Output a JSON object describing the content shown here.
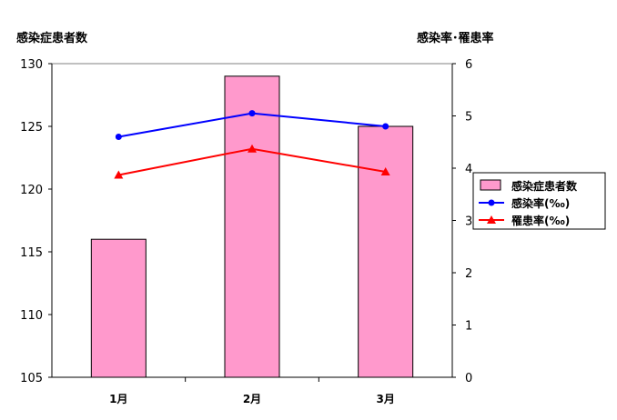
{
  "chart_data": {
    "type": "bar",
    "left_axis_title": "感染症患者数",
    "right_axis_title": "感染率･罹患率",
    "categories": [
      "1月",
      "2月",
      "3月"
    ],
    "y_left": {
      "min": 105,
      "max": 130,
      "ticks": [
        105,
        110,
        115,
        120,
        125,
        130
      ]
    },
    "y_right": {
      "min": 0,
      "max": 6,
      "ticks": [
        0,
        1,
        2,
        3,
        4,
        5,
        6
      ]
    },
    "grid": false,
    "legend_position": "right",
    "series": [
      {
        "name": "感染症患者数",
        "type": "bar",
        "axis": "left",
        "values": [
          116,
          129,
          125
        ],
        "color": "#FF99CC"
      },
      {
        "name": "感染率(‰)",
        "type": "line",
        "axis": "right",
        "marker": "circle",
        "values": [
          4.6,
          5.05,
          4.8
        ],
        "color": "#0000FF"
      },
      {
        "name": "罹患率(‰)",
        "type": "line",
        "axis": "right",
        "marker": "triangle",
        "values": [
          3.87,
          4.37,
          3.93
        ],
        "color": "#FF0000"
      }
    ]
  }
}
